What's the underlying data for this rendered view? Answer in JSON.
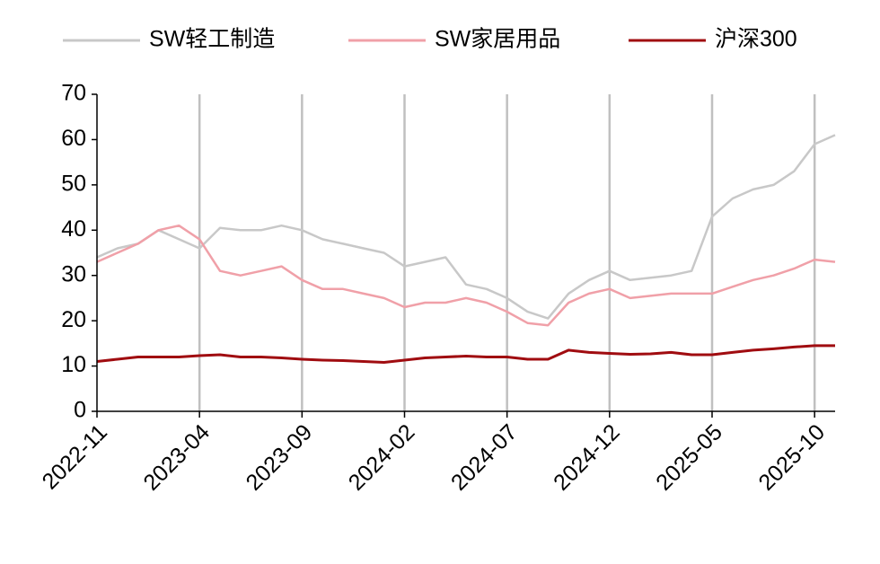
{
  "chart_data": {
    "type": "line",
    "x": [
      "2022-11",
      "2022-12",
      "2023-01",
      "2023-02",
      "2023-03",
      "2023-04",
      "2023-05",
      "2023-06",
      "2023-07",
      "2023-08",
      "2023-09",
      "2023-10",
      "2023-11",
      "2023-12",
      "2024-01",
      "2024-02",
      "2024-03",
      "2024-04",
      "2024-05",
      "2024-06",
      "2024-07",
      "2024-08",
      "2024-09",
      "2024-10",
      "2024-11",
      "2024-12",
      "2025-01",
      "2025-02",
      "2025-03",
      "2025-04",
      "2025-05",
      "2025-06",
      "2025-07",
      "2025-08",
      "2025-09",
      "2025-10",
      "2025-11"
    ],
    "xticks": [
      "2022-11",
      "2023-04",
      "2023-09",
      "2024-02",
      "2024-07",
      "2024-12",
      "2025-05",
      "2025-10"
    ],
    "ylim": [
      0,
      70
    ],
    "yticks": [
      0,
      10,
      20,
      30,
      40,
      50,
      60,
      70
    ],
    "grid": true,
    "legend": "top",
    "series": [
      {
        "name": "SW轻工制造",
        "color": "#c8c8c8",
        "values": [
          34,
          36,
          37,
          40,
          38,
          36,
          40.5,
          40,
          40,
          41,
          40,
          38,
          37,
          36,
          35,
          32,
          33,
          34,
          28,
          27,
          25,
          22,
          20.5,
          26,
          29,
          31,
          29,
          29.5,
          30,
          31,
          43,
          47,
          49,
          50,
          53,
          59,
          61
        ]
      },
      {
        "name": "SW家居用品",
        "color": "#f0a0a8",
        "values": [
          33,
          35,
          37,
          40,
          41,
          38,
          31,
          30,
          31,
          32,
          29,
          27,
          27,
          26,
          25,
          23,
          24,
          24,
          25,
          24,
          22,
          19.5,
          19,
          24,
          26,
          27,
          25,
          25.5,
          26,
          26,
          26,
          27.5,
          29,
          30,
          31.5,
          33.5,
          33
        ]
      },
      {
        "name": "沪深300",
        "color": "#a00c10",
        "values": [
          11,
          11.5,
          12,
          12,
          12,
          12.3,
          12.5,
          12,
          12,
          11.8,
          11.5,
          11.3,
          11.2,
          11,
          10.8,
          11.3,
          11.8,
          12,
          12.2,
          12,
          12,
          11.5,
          11.5,
          13.5,
          13,
          12.8,
          12.6,
          12.7,
          13,
          12.5,
          12.5,
          13,
          13.5,
          13.8,
          14.2,
          14.5,
          14.5
        ]
      }
    ]
  }
}
